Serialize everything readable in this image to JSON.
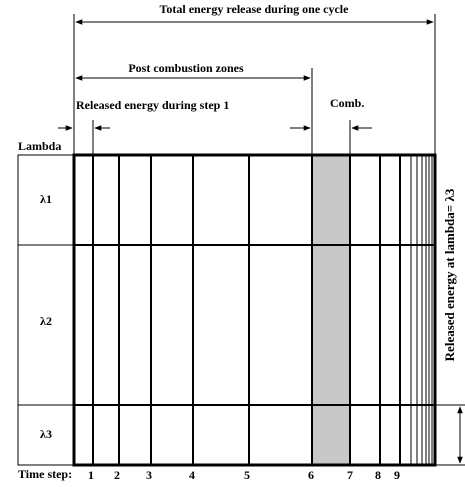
{
  "labels": {
    "total": "Total energy release during one cycle",
    "post": "Post combustion zones",
    "step1": "Released energy during step 1",
    "comb": "Comb.",
    "lambda": "Lambda",
    "side": "Released energy at lambda= λ3",
    "time_step": "Time step:"
  },
  "rows": [
    "λ1",
    "λ2",
    "λ3"
  ],
  "steps": [
    "1",
    "2",
    "3",
    "4",
    "5",
    "6",
    "7",
    "8",
    "9"
  ]
}
